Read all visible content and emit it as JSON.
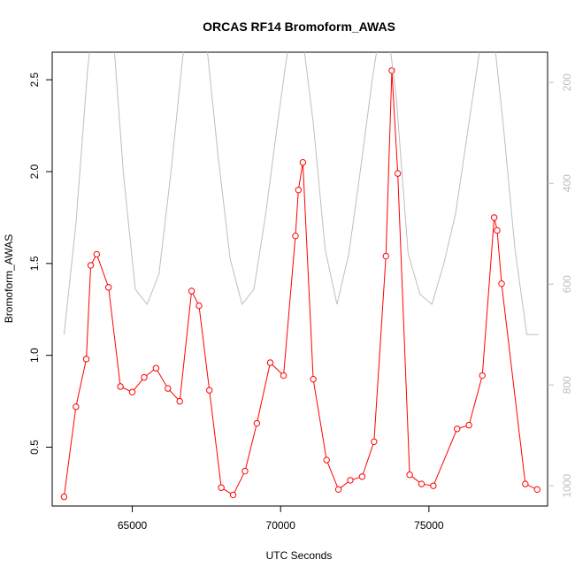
{
  "chart_data": {
    "type": "line",
    "title": "ORCAS RF14 Bromoform_AWAS",
    "xlabel": "UTC Seconds",
    "ylabel": "Bromoform_AWAS",
    "xlim": [
      62300,
      79000
    ],
    "ylim": [
      0.18,
      2.65
    ],
    "x_ticks": [
      65000,
      70000,
      75000
    ],
    "x_tick_labels": [
      "65000",
      "70000",
      "75000"
    ],
    "y_ticks": [
      0.5,
      1.0,
      1.5,
      2.0,
      2.5
    ],
    "y_tick_labels": [
      "0.5",
      "1.0",
      "1.5",
      "2.0",
      "2.5"
    ],
    "y2lim": [
      1040,
      140
    ],
    "y2_ticks": [
      200,
      400,
      600,
      800,
      1000
    ],
    "y2_tick_labels": [
      "200",
      "400",
      "600",
      "800",
      "1000"
    ],
    "grid": false,
    "series": [
      {
        "color": "#ff0000",
        "marker": "open-circle",
        "x": [
          62700,
          63100,
          63450,
          63600,
          63800,
          64200,
          64600,
          65000,
          65400,
          65800,
          66200,
          66600,
          67000,
          67250,
          67600,
          68000,
          68400,
          68800,
          69200,
          69650,
          70100,
          70500,
          70600,
          70750,
          71100,
          71550,
          71950,
          72350,
          72750,
          73150,
          73550,
          73750,
          73950,
          74350,
          74750,
          75150,
          75950,
          76350,
          76800,
          77200,
          77300,
          77450,
          78250,
          78650
        ],
        "y": [
          0.23,
          0.72,
          0.98,
          1.49,
          1.55,
          1.37,
          0.83,
          0.8,
          0.88,
          0.93,
          0.82,
          0.75,
          1.35,
          1.27,
          0.81,
          0.28,
          0.24,
          0.37,
          0.63,
          0.96,
          0.89,
          1.65,
          1.9,
          2.05,
          0.87,
          0.43,
          0.27,
          0.32,
          0.34,
          0.53,
          1.54,
          2.55,
          1.99,
          0.35,
          0.3,
          0.29,
          0.6,
          0.62,
          0.89,
          1.75,
          1.68,
          1.39,
          0.3,
          0.27
        ]
      },
      {
        "color": "#bebebe",
        "axis": "right",
        "x": [
          62700,
          63100,
          63500,
          63900,
          64300,
          64700,
          65100,
          65500,
          65900,
          66300,
          66700,
          67100,
          67500,
          67900,
          68300,
          68700,
          69100,
          69500,
          69900,
          70300,
          70700,
          71100,
          71500,
          71900,
          72300,
          72700,
          73100,
          73500,
          73900,
          74300,
          74700,
          75100,
          75500,
          75900,
          76300,
          76700,
          77100,
          77500,
          77900,
          78300,
          78700
        ],
        "y": [
          700,
          480,
          170,
          -20,
          60,
          380,
          610,
          640,
          580,
          380,
          150,
          20,
          120,
          350,
          550,
          640,
          610,
          460,
          280,
          110,
          90,
          280,
          530,
          640,
          540,
          370,
          190,
          40,
          230,
          540,
          620,
          640,
          560,
          460,
          300,
          140,
          60,
          280,
          530,
          700,
          700
        ]
      }
    ]
  }
}
